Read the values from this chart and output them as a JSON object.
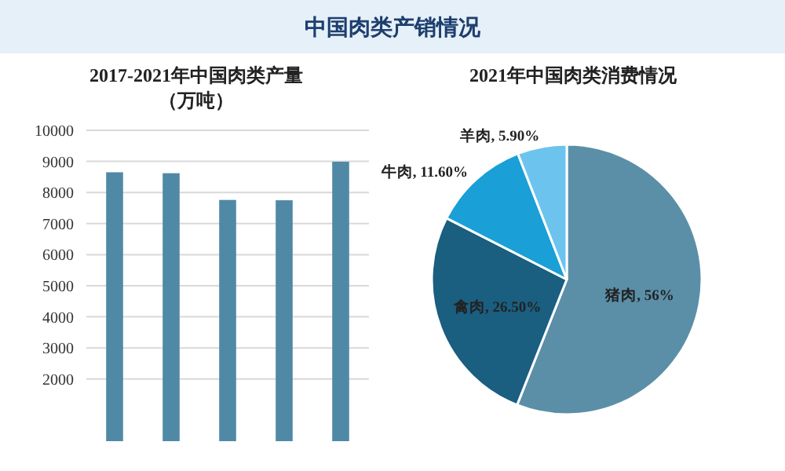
{
  "chart_data": [
    {
      "type": "bar",
      "title": "2017-2021年中国肉类产量",
      "subtitle": "（万吨）",
      "annotations": [
        "中国肉类产销情况"
      ],
      "categories": [
        null,
        null,
        null,
        null,
        null
      ],
      "series": [
        {
          "color": "#5089a6",
          "values": [
            8650,
            8620,
            7760,
            7750,
            8990
          ]
        }
      ],
      "ylim": [
        0,
        10000
      ],
      "yticks": [
        2000,
        3000,
        4000,
        5000,
        6000,
        7000,
        8000,
        9000,
        10000
      ],
      "grid": "y"
    },
    {
      "type": "pie",
      "title": "2021年中国肉类消费情况",
      "categories": [
        "猪肉",
        "禽肉",
        "牛肉",
        "羊肉"
      ],
      "values": [
        56,
        26.5,
        11.6,
        5.9
      ],
      "value_labels": [
        "56%",
        "26.50%",
        "11.60%",
        "5.90%"
      ],
      "colors": [
        "#5b8fa8",
        "#1a5e80",
        "#1a9fd6",
        "#6cc4ee"
      ]
    }
  ]
}
